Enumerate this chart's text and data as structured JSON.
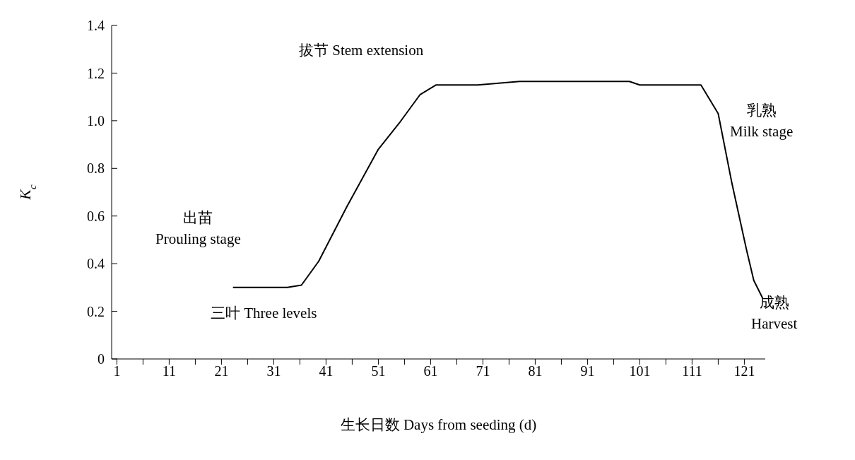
{
  "chart_data": {
    "type": "line",
    "xlabel": "生长日数 Days from seeding (d)",
    "ylabel": "K$_{c}$",
    "annotations": [
      "拔节 Stem extension",
      "出苗\nProuling stage",
      "三叶 Three levels",
      "乳熟\nMilk stage",
      "成熟\nHarvest"
    ],
    "series": [
      {
        "color": "#000000",
        "x": [
          23.2,
          27,
          30,
          33.6,
          36.3,
          39.6,
          45,
          51,
          55,
          59,
          62,
          70,
          78,
          90,
          99,
          101,
          106,
          112.7,
          116,
          118.6,
          121.4,
          122.8,
          124.5
        ],
        "values": [
          0.3,
          0.3,
          0.3,
          0.3,
          0.31,
          0.41,
          0.64,
          0.88,
          0.99,
          1.11,
          1.15,
          1.15,
          1.165,
          1.165,
          1.165,
          1.15,
          1.15,
          1.15,
          1.03,
          0.74,
          0.46,
          0.33,
          0.255
        ]
      }
    ],
    "xlim": [
      0,
      125
    ],
    "xticks": [
      1,
      {
        "value": 6,
        "label": null
      },
      11,
      {
        "value": 16,
        "label": null
      },
      21,
      {
        "value": 26,
        "label": null
      },
      31,
      {
        "value": 36,
        "label": null
      },
      41,
      {
        "value": 46,
        "label": null
      },
      51,
      {
        "value": 56,
        "label": null
      },
      61,
      {
        "value": 66,
        "label": null
      },
      71,
      {
        "value": 76,
        "label": null
      },
      81,
      {
        "value": 86,
        "label": null
      },
      91,
      {
        "value": 96,
        "label": null
      },
      101,
      {
        "value": 106,
        "label": null
      },
      111,
      {
        "value": 116,
        "label": null
      },
      121
    ],
    "ylim": [
      0,
      1.4
    ],
    "yticks": [
      0,
      0.2,
      0.4,
      0.6,
      0.8,
      {
        "value": 1,
        "label": "1.0"
      },
      1.2,
      1.4
    ],
    "grid": false,
    "marker": "none",
    "line_style": "solid"
  }
}
